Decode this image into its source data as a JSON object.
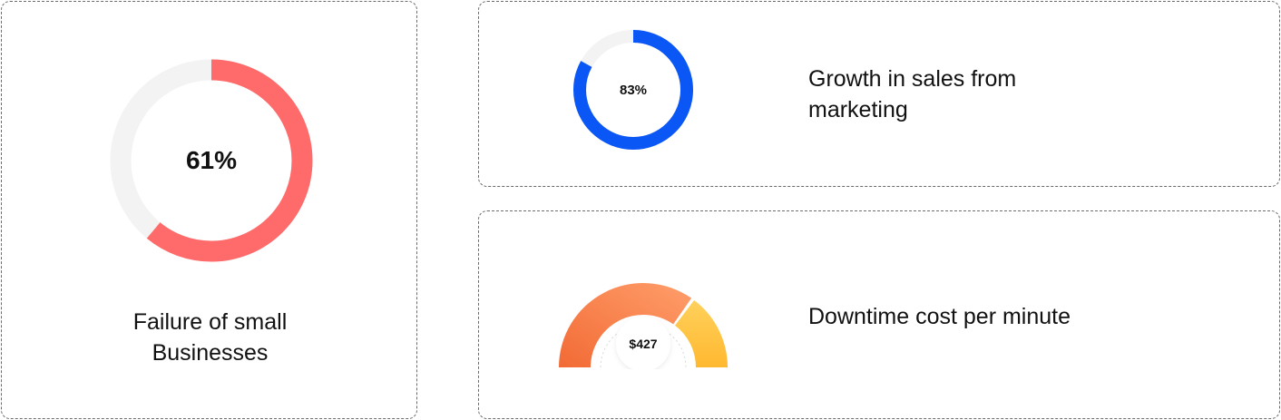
{
  "cards": {
    "failure": {
      "value_label": "61%",
      "percent": 61,
      "caption_line1": "Failure of small",
      "caption_line2": "Businesses",
      "ring_color": "#FF6B6B",
      "track_color": "#F3F3F3"
    },
    "growth": {
      "value_label": "83%",
      "percent": 83,
      "caption_line1": "Growth in sales from",
      "caption_line2": "marketing",
      "ring_color": "#0B57F5",
      "track_color": "#F3F3F3"
    },
    "downtime": {
      "value_label": "$427",
      "caption": "Downtime cost per minute",
      "gauge_fraction": 0.7,
      "gauge_colors": [
        "#F26A35",
        "#FF9E6A",
        "#FFD15C",
        "#FFB830"
      ]
    }
  }
}
